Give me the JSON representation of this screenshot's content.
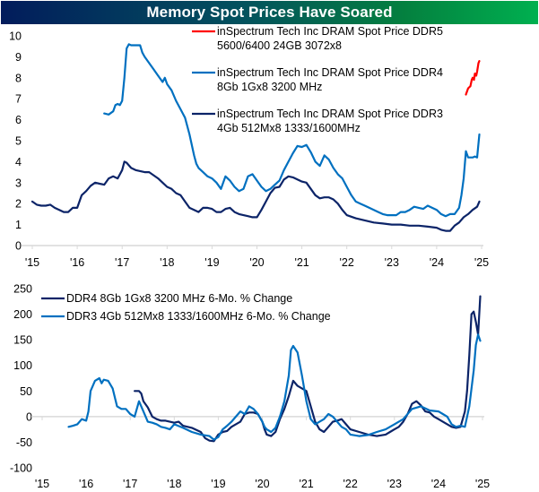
{
  "title": "Memory Spot Prices Have Soared",
  "colors": {
    "ddr5": "#ff0000",
    "ddr4": "#0070c0",
    "ddr3": "#0c2468",
    "axis": "#d9d9d9",
    "title_gradient_start": "#021c5c",
    "title_gradient_end": "#00b050"
  },
  "chart_data": [
    {
      "type": "line",
      "title": "Memory Spot Prices Have Soared",
      "xlabel": "",
      "ylabel": "",
      "xlim": [
        2015,
        2025
      ],
      "ylim": [
        0,
        10
      ],
      "grid": false,
      "legend_position": "top-right",
      "x_tick_labels": [
        "'15",
        "'16",
        "'17",
        "'18",
        "'19",
        "'20",
        "'21",
        "'22",
        "'23",
        "'24",
        "'25"
      ],
      "y_tick_labels": [
        "0",
        "1",
        "2",
        "3",
        "4",
        "5",
        "6",
        "7",
        "8",
        "9",
        "10"
      ],
      "series": [
        {
          "name": "inSpectrum Tech Inc DRAM Spot Price DDR5 5600/6400 24GB 3072x8",
          "legend_lines": [
            "inSpectrum Tech Inc DRAM Spot Price DDR5",
            "5600/6400 24GB 3072x8"
          ],
          "color_key": "ddr5",
          "x": [
            2024.65,
            2024.7,
            2024.75,
            2024.78,
            2024.8,
            2024.83,
            2024.85,
            2024.88,
            2024.9,
            2024.93,
            2024.95
          ],
          "y": [
            7.2,
            7.5,
            7.6,
            7.9,
            8.0,
            7.9,
            8.2,
            8.1,
            8.3,
            8.7,
            8.8
          ]
        },
        {
          "name": "inSpectrum Tech Inc DRAM Spot Price DDR4 8Gb 1Gx8 3200 MHz",
          "legend_lines": [
            "inSpectrum Tech Inc DRAM Spot Price DDR4",
            "8Gb 1Gx8 3200 MHz"
          ],
          "color_key": "ddr4",
          "x": [
            2016.6,
            2016.7,
            2016.8,
            2016.85,
            2016.9,
            2016.95,
            2017.0,
            2017.05,
            2017.1,
            2017.15,
            2017.2,
            2017.3,
            2017.4,
            2017.45,
            2017.5,
            2017.6,
            2017.7,
            2017.8,
            2017.9,
            2017.95,
            2018.0,
            2018.1,
            2018.2,
            2018.3,
            2018.4,
            2018.5,
            2018.6,
            2018.65,
            2018.7,
            2018.8,
            2018.9,
            2019.0,
            2019.1,
            2019.2,
            2019.3,
            2019.4,
            2019.5,
            2019.6,
            2019.7,
            2019.8,
            2019.9,
            2020.0,
            2020.1,
            2020.2,
            2020.3,
            2020.4,
            2020.5,
            2020.6,
            2020.7,
            2020.8,
            2020.9,
            2021.0,
            2021.1,
            2021.2,
            2021.3,
            2021.4,
            2021.5,
            2021.6,
            2021.7,
            2021.8,
            2021.9,
            2022.0,
            2022.1,
            2022.2,
            2022.3,
            2022.4,
            2022.5,
            2022.6,
            2022.7,
            2022.8,
            2022.9,
            2023.0,
            2023.1,
            2023.2,
            2023.3,
            2023.4,
            2023.5,
            2023.6,
            2023.7,
            2023.8,
            2023.9,
            2024.0,
            2024.1,
            2024.2,
            2024.3,
            2024.4,
            2024.5,
            2024.55,
            2024.6,
            2024.65,
            2024.7,
            2024.75,
            2024.8,
            2024.85,
            2024.9,
            2024.95
          ],
          "y": [
            6.3,
            6.25,
            6.4,
            6.7,
            6.75,
            6.7,
            6.9,
            8.0,
            9.4,
            9.6,
            9.55,
            9.55,
            9.55,
            9.2,
            9.0,
            8.7,
            8.4,
            8.1,
            7.8,
            8.0,
            7.7,
            7.4,
            6.9,
            6.5,
            6.1,
            5.3,
            4.3,
            3.9,
            3.7,
            3.5,
            3.3,
            3.2,
            3.0,
            2.7,
            3.3,
            3.1,
            2.8,
            2.6,
            2.7,
            3.3,
            3.4,
            3.1,
            2.8,
            2.6,
            2.7,
            2.9,
            3.1,
            3.6,
            4.0,
            4.4,
            4.75,
            4.7,
            4.8,
            4.45,
            4.0,
            3.8,
            4.3,
            4.1,
            3.7,
            3.4,
            3.2,
            2.8,
            2.4,
            2.1,
            2.0,
            1.9,
            1.8,
            1.7,
            1.6,
            1.5,
            1.45,
            1.45,
            1.45,
            1.6,
            1.6,
            1.7,
            1.85,
            1.8,
            1.75,
            1.9,
            1.8,
            1.7,
            1.5,
            1.4,
            1.5,
            1.5,
            1.8,
            2.4,
            3.2,
            4.5,
            4.2,
            4.2,
            4.2,
            4.25,
            4.2,
            5.3
          ]
        },
        {
          "name": "inSpectrum Tech Inc DRAM Spot Price DDR3 4Gb 512Mx8 1333/1600MHz",
          "legend_lines": [
            "inSpectrum Tech Inc DRAM Spot Price DDR3",
            "4Gb 512Mx8 1333/1600MHz"
          ],
          "color_key": "ddr3",
          "x": [
            2015.0,
            2015.1,
            2015.2,
            2015.3,
            2015.4,
            2015.5,
            2015.6,
            2015.7,
            2015.8,
            2015.9,
            2016.0,
            2016.1,
            2016.2,
            2016.3,
            2016.4,
            2016.5,
            2016.6,
            2016.7,
            2016.8,
            2016.9,
            2017.0,
            2017.05,
            2017.1,
            2017.2,
            2017.3,
            2017.4,
            2017.5,
            2017.6,
            2017.7,
            2017.8,
            2017.9,
            2018.0,
            2018.1,
            2018.2,
            2018.3,
            2018.4,
            2018.5,
            2018.6,
            2018.7,
            2018.8,
            2018.9,
            2019.0,
            2019.1,
            2019.2,
            2019.3,
            2019.4,
            2019.5,
            2019.6,
            2019.7,
            2019.8,
            2019.9,
            2020.0,
            2020.1,
            2020.2,
            2020.3,
            2020.4,
            2020.5,
            2020.6,
            2020.7,
            2020.8,
            2020.9,
            2021.0,
            2021.1,
            2021.2,
            2021.3,
            2021.4,
            2021.5,
            2021.6,
            2021.7,
            2021.8,
            2021.9,
            2022.0,
            2022.2,
            2022.4,
            2022.6,
            2022.8,
            2023.0,
            2023.2,
            2023.4,
            2023.6,
            2023.8,
            2024.0,
            2024.1,
            2024.2,
            2024.3,
            2024.4,
            2024.5,
            2024.6,
            2024.7,
            2024.8,
            2024.9,
            2024.95
          ],
          "y": [
            2.1,
            1.95,
            1.9,
            1.9,
            1.95,
            1.8,
            1.7,
            1.6,
            1.6,
            1.8,
            1.8,
            2.4,
            2.6,
            2.85,
            3.0,
            2.95,
            2.9,
            3.2,
            3.3,
            3.2,
            3.6,
            4.0,
            3.95,
            3.7,
            3.6,
            3.55,
            3.5,
            3.5,
            3.35,
            3.2,
            3.0,
            2.8,
            2.7,
            2.5,
            2.4,
            2.1,
            1.8,
            1.7,
            1.6,
            1.8,
            1.8,
            1.75,
            1.6,
            1.6,
            1.75,
            1.8,
            1.6,
            1.5,
            1.45,
            1.4,
            1.35,
            1.35,
            1.7,
            2.1,
            2.5,
            2.75,
            2.8,
            3.15,
            3.3,
            3.25,
            3.15,
            3.05,
            3.0,
            2.7,
            2.4,
            2.25,
            2.3,
            2.3,
            2.2,
            2.0,
            1.7,
            1.45,
            1.3,
            1.2,
            1.1,
            1.05,
            1.0,
            1.0,
            0.95,
            0.95,
            0.9,
            0.85,
            0.75,
            0.7,
            0.7,
            0.95,
            1.1,
            1.35,
            1.5,
            1.7,
            1.85,
            2.1
          ]
        }
      ]
    },
    {
      "type": "line",
      "title": "",
      "xlabel": "",
      "ylabel": "",
      "xlim": [
        2015,
        2025
      ],
      "ylim": [
        -100,
        250
      ],
      "grid": false,
      "legend_position": "top-left",
      "x_tick_labels": [
        "'15",
        "'16",
        "'17",
        "'18",
        "'19",
        "'20",
        "'21",
        "'22",
        "'23",
        "'24",
        "'25"
      ],
      "y_tick_labels": [
        "-100",
        "-50",
        "0",
        "50",
        "100",
        "150",
        "200",
        "250"
      ],
      "series": [
        {
          "name": "DDR4 8Gb 1Gx8 3200 MHz 6-Mo. % Change",
          "color_key": "ddr3",
          "x": [
            2017.1,
            2017.2,
            2017.25,
            2017.3,
            2017.4,
            2017.5,
            2017.6,
            2017.7,
            2017.8,
            2017.9,
            2018.0,
            2018.1,
            2018.2,
            2018.4,
            2018.6,
            2018.7,
            2018.8,
            2018.9,
            2019.0,
            2019.1,
            2019.2,
            2019.3,
            2019.4,
            2019.5,
            2019.6,
            2019.7,
            2019.8,
            2019.9,
            2020.0,
            2020.05,
            2020.1,
            2020.2,
            2020.3,
            2020.4,
            2020.5,
            2020.6,
            2020.7,
            2020.8,
            2020.9,
            2021.0,
            2021.1,
            2021.2,
            2021.3,
            2021.4,
            2021.5,
            2021.6,
            2021.7,
            2021.8,
            2021.9,
            2022.0,
            2022.2,
            2022.4,
            2022.6,
            2022.8,
            2022.9,
            2023.0,
            2023.1,
            2023.2,
            2023.3,
            2023.4,
            2023.5,
            2023.6,
            2023.7,
            2023.8,
            2023.9,
            2024.0,
            2024.1,
            2024.2,
            2024.3,
            2024.4,
            2024.5,
            2024.6,
            2024.65,
            2024.7,
            2024.75,
            2024.8,
            2024.85,
            2024.9,
            2024.95
          ],
          "y": [
            50,
            50,
            45,
            30,
            18,
            0,
            -5,
            -8,
            -8,
            -10,
            -12,
            -10,
            -18,
            -22,
            -30,
            -42,
            -47,
            -48,
            -35,
            -30,
            -28,
            -20,
            -15,
            -10,
            5,
            8,
            8,
            5,
            -10,
            -25,
            -35,
            -38,
            -30,
            -5,
            15,
            40,
            70,
            60,
            55,
            50,
            20,
            -10,
            -25,
            -30,
            -20,
            -10,
            -8,
            -5,
            -15,
            -25,
            -30,
            -35,
            -38,
            -35,
            -30,
            -25,
            -20,
            -10,
            5,
            25,
            30,
            22,
            10,
            8,
            0,
            -5,
            -10,
            -15,
            -20,
            -22,
            -20,
            10,
            50,
            120,
            200,
            205,
            185,
            160,
            235
          ]
        },
        {
          "name": "DDR3 4Gb 512Mx8 1333/1600MHz 6-Mo. % Change",
          "color_key": "ddr4",
          "x": [
            2015.6,
            2015.7,
            2015.8,
            2015.9,
            2016.0,
            2016.05,
            2016.1,
            2016.2,
            2016.3,
            2016.35,
            2016.4,
            2016.5,
            2016.6,
            2016.7,
            2016.8,
            2016.9,
            2017.0,
            2017.1,
            2017.2,
            2017.3,
            2017.4,
            2017.5,
            2017.6,
            2017.7,
            2017.8,
            2017.9,
            2018.0,
            2018.2,
            2018.4,
            2018.6,
            2018.8,
            2018.9,
            2019.0,
            2019.1,
            2019.2,
            2019.3,
            2019.4,
            2019.5,
            2019.6,
            2019.7,
            2019.8,
            2019.9,
            2020.0,
            2020.05,
            2020.1,
            2020.2,
            2020.3,
            2020.4,
            2020.5,
            2020.6,
            2020.65,
            2020.7,
            2020.8,
            2020.9,
            2021.0,
            2021.1,
            2021.2,
            2021.3,
            2021.4,
            2021.5,
            2021.6,
            2021.7,
            2021.8,
            2021.9,
            2022.0,
            2022.2,
            2022.4,
            2022.6,
            2022.8,
            2023.0,
            2023.2,
            2023.4,
            2023.6,
            2023.8,
            2024.0,
            2024.1,
            2024.2,
            2024.3,
            2024.4,
            2024.5,
            2024.6,
            2024.7,
            2024.8,
            2024.85,
            2024.9,
            2024.95
          ],
          "y": [
            -20,
            -18,
            -15,
            -5,
            -8,
            10,
            50,
            70,
            75,
            65,
            72,
            70,
            55,
            20,
            15,
            15,
            5,
            0,
            30,
            10,
            -10,
            -12,
            -15,
            -20,
            -22,
            -25,
            -15,
            -22,
            -30,
            -35,
            -38,
            -45,
            -40,
            -25,
            -18,
            -10,
            0,
            10,
            5,
            20,
            15,
            5,
            -10,
            -20,
            -25,
            -30,
            -22,
            0,
            30,
            80,
            130,
            138,
            125,
            80,
            30,
            -5,
            -15,
            -10,
            -5,
            5,
            0,
            -10,
            -20,
            -25,
            -35,
            -38,
            -36,
            -30,
            -25,
            -15,
            -5,
            15,
            20,
            12,
            10,
            5,
            0,
            -15,
            -20,
            -18,
            -20,
            20,
            90,
            140,
            160,
            148
          ]
        }
      ]
    }
  ]
}
